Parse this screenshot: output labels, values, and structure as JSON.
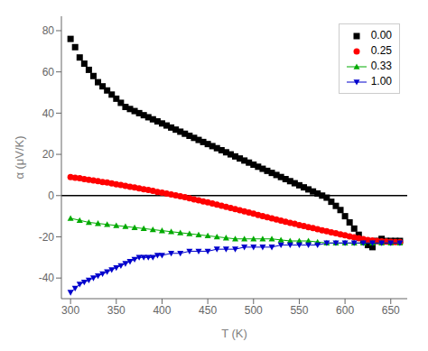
{
  "chart_data": {
    "type": "line",
    "title": "",
    "x_label": "T (K)",
    "y_label": "α (μV/K)",
    "xlim": [
      290,
      668
    ],
    "ylim": [
      -50,
      87
    ],
    "xticks": [
      300,
      350,
      400,
      450,
      500,
      550,
      600,
      650
    ],
    "yticks": [
      -40,
      -20,
      0,
      20,
      40,
      60,
      80
    ],
    "grid": false,
    "legend": "upper right",
    "hlines": [
      {
        "y": 0,
        "color": "#000000"
      }
    ],
    "series": [
      {
        "name": "0.00",
        "color": "#000000",
        "type": "scatter",
        "marker": "square",
        "x": [
          300,
          305,
          310,
          315,
          320,
          325,
          330,
          335,
          340,
          345,
          350,
          355,
          360,
          365,
          370,
          375,
          380,
          385,
          390,
          395,
          400,
          405,
          410,
          415,
          420,
          425,
          430,
          435,
          440,
          445,
          450,
          455,
          460,
          465,
          470,
          475,
          480,
          485,
          490,
          495,
          500,
          505,
          510,
          515,
          520,
          525,
          530,
          535,
          540,
          545,
          550,
          555,
          560,
          565,
          570,
          575,
          580,
          585,
          590,
          595,
          600,
          605,
          610,
          615,
          620,
          625,
          630,
          635,
          640,
          645,
          650,
          655,
          660
        ],
        "values": [
          76,
          72,
          67,
          64,
          61,
          58,
          55,
          53,
          51,
          49,
          47,
          45,
          43,
          42,
          41,
          40,
          39,
          38,
          37,
          36,
          35,
          34,
          33,
          32,
          31,
          30,
          29,
          28,
          27,
          26,
          25,
          24,
          23,
          22,
          21,
          20,
          19,
          18,
          17,
          16,
          15,
          14,
          13,
          12,
          11,
          10,
          9,
          8,
          7,
          6,
          5,
          4,
          3,
          2,
          1,
          0,
          -1,
          -3,
          -5,
          -7,
          -10,
          -13,
          -16,
          -19,
          -22,
          -24,
          -25,
          -22,
          -21,
          -22,
          -22,
          -22,
          -22
        ]
      },
      {
        "name": "0.25",
        "color": "#ff0000",
        "type": "scatter",
        "marker": "circle",
        "x": [
          300,
          305,
          310,
          315,
          320,
          325,
          330,
          335,
          340,
          345,
          350,
          355,
          360,
          365,
          370,
          375,
          380,
          385,
          390,
          395,
          400,
          405,
          410,
          415,
          420,
          425,
          430,
          435,
          440,
          445,
          450,
          455,
          460,
          465,
          470,
          475,
          480,
          485,
          490,
          495,
          500,
          505,
          510,
          515,
          520,
          525,
          530,
          535,
          540,
          545,
          550,
          555,
          560,
          565,
          570,
          575,
          580,
          585,
          590,
          595,
          600,
          605,
          610,
          615,
          620,
          625,
          630,
          635,
          640,
          645,
          650,
          655,
          660
        ],
        "values": [
          9.0,
          8.7,
          8.4,
          8.0,
          7.7,
          7.3,
          7.0,
          6.6,
          6.3,
          5.9,
          5.5,
          5.1,
          4.7,
          4.3,
          3.9,
          3.5,
          3.1,
          2.7,
          2.3,
          1.8,
          1.4,
          1.0,
          0.5,
          0.1,
          -0.3,
          -0.8,
          -1.3,
          -1.8,
          -2.3,
          -2.8,
          -3.3,
          -3.8,
          -4.4,
          -4.9,
          -5.5,
          -6.0,
          -6.6,
          -7.1,
          -7.7,
          -8.2,
          -8.8,
          -9.4,
          -9.9,
          -10.5,
          -11.0,
          -11.6,
          -12.1,
          -12.7,
          -13.2,
          -13.7,
          -14.3,
          -14.8,
          -15.3,
          -15.8,
          -16.3,
          -16.8,
          -17.3,
          -17.8,
          -18.3,
          -18.8,
          -19.3,
          -19.8,
          -20.2,
          -20.7,
          -21.1,
          -21.5,
          -21.8,
          -22.0,
          -22.2,
          -22.3,
          -22.4,
          -22.5,
          -22.5
        ]
      },
      {
        "name": "0.33",
        "color": "#00aa00",
        "type": "line",
        "marker": "triangle-up",
        "x": [
          300,
          310,
          320,
          330,
          340,
          350,
          360,
          370,
          380,
          390,
          400,
          410,
          420,
          430,
          440,
          450,
          460,
          470,
          480,
          490,
          500,
          510,
          520,
          530,
          540,
          550,
          560,
          570,
          580,
          590,
          600,
          610,
          620,
          630,
          640,
          650,
          660
        ],
        "values": [
          -11,
          -12,
          -13,
          -13.5,
          -14,
          -14.5,
          -15,
          -15.5,
          -16,
          -16.5,
          -17,
          -17.5,
          -18,
          -18.5,
          -19,
          -19.5,
          -20,
          -20.5,
          -21,
          -21,
          -21,
          -21,
          -21,
          -21.5,
          -22,
          -22,
          -22,
          -22.5,
          -23,
          -23,
          -23,
          -23,
          -23,
          -23,
          -23,
          -23,
          -23
        ]
      },
      {
        "name": "1.00",
        "color": "#0000cc",
        "type": "line",
        "marker": "triangle-down",
        "x": [
          300,
          305,
          310,
          315,
          320,
          325,
          330,
          335,
          340,
          345,
          350,
          355,
          360,
          365,
          370,
          375,
          380,
          385,
          390,
          395,
          400,
          410,
          420,
          430,
          440,
          450,
          460,
          470,
          480,
          490,
          500,
          510,
          520,
          530,
          540,
          550,
          560,
          570,
          580,
          590,
          600,
          610,
          620,
          630,
          640,
          650,
          660
        ],
        "values": [
          -47,
          -45,
          -43,
          -42,
          -41,
          -40,
          -39,
          -38,
          -37,
          -36,
          -35,
          -34,
          -33,
          -32,
          -31,
          -30,
          -30,
          -30,
          -30,
          -29,
          -29,
          -28,
          -28,
          -27,
          -27,
          -27,
          -26,
          -26,
          -26,
          -25,
          -25,
          -25,
          -25,
          -24,
          -24,
          -24,
          -24,
          -24,
          -23,
          -23,
          -23,
          -23,
          -23,
          -23,
          -23,
          -23,
          -23
        ]
      }
    ]
  }
}
